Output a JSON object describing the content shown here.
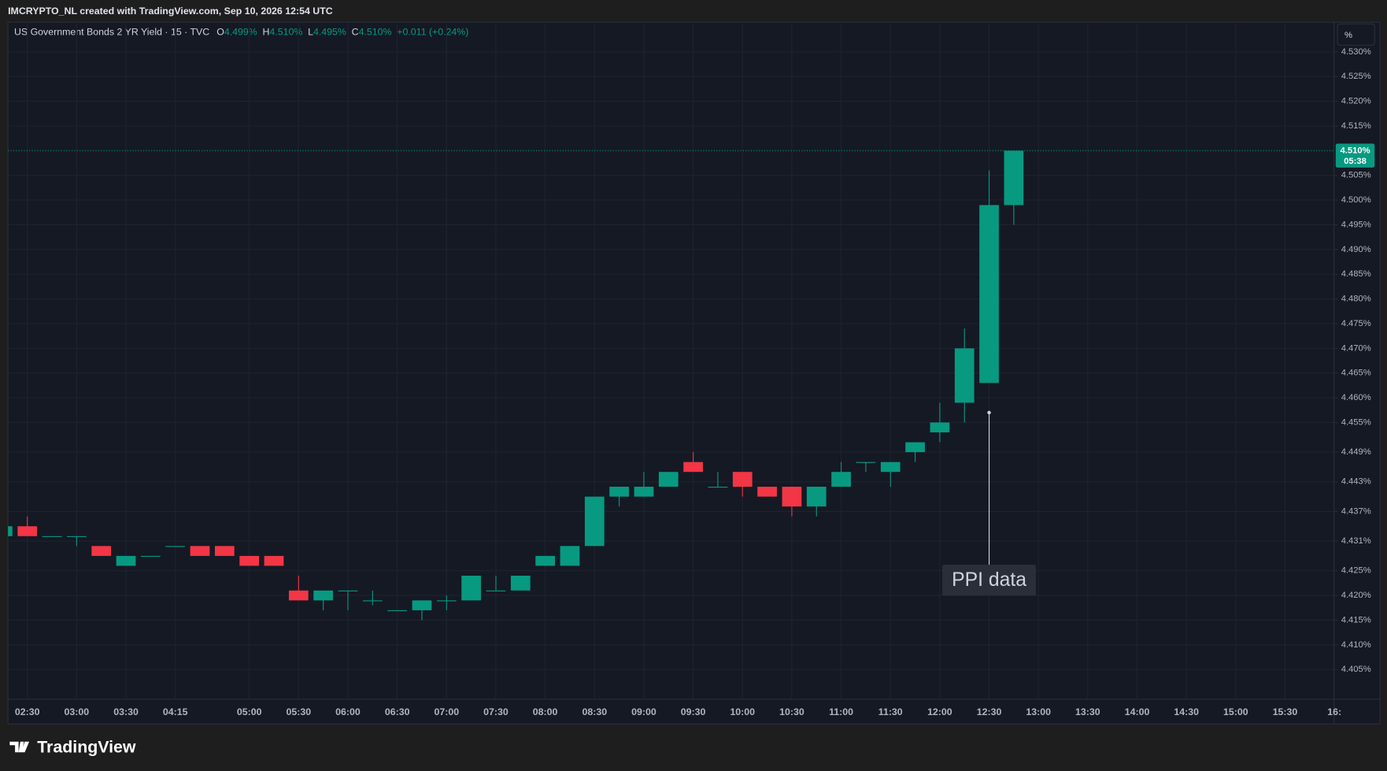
{
  "header": {
    "credit": "IMCRYPTO_NL created with TradingView.com, Sep 10, 2026 12:54 UTC"
  },
  "footer": {
    "brand": "TradingView"
  },
  "chart_data": {
    "type": "candlestick",
    "symbol": "US Government Bonds 2 YR Yield · 15 · TVC",
    "legend": [
      {
        "key": "O",
        "label": "4.499%"
      },
      {
        "key": "H",
        "label": "4.510%"
      },
      {
        "key": "L",
        "label": "4.495%"
      },
      {
        "key": "C",
        "label": "4.510%"
      }
    ],
    "change": "+0.011 (+0.24%)",
    "unit": "%",
    "up_color": "#089981",
    "down_color": "#f23645",
    "grid": true,
    "categories": [
      null,
      "02:30",
      null,
      "03:00",
      null,
      "03:30",
      null,
      "04:15",
      null,
      null,
      "05:00",
      null,
      "05:30",
      null,
      "06:00",
      null,
      "06:30",
      null,
      "07:00",
      null,
      "07:30",
      null,
      "08:00",
      null,
      "08:30",
      null,
      "09:00",
      null,
      "09:30",
      null,
      "10:00",
      null,
      "10:30",
      null,
      "11:00",
      null,
      "11:30",
      null,
      "12:00",
      null,
      "12:30",
      null,
      "13:00",
      null,
      "13:30",
      null,
      "14:00",
      null,
      "14:30",
      null,
      "15:00",
      null,
      "15:30",
      null,
      "16:"
    ],
    "open": [
      4.432,
      4.434,
      4.432,
      4.432,
      4.43,
      4.426,
      4.428,
      4.43,
      4.43,
      4.43,
      4.428,
      4.428,
      4.421,
      4.419,
      4.421,
      4.419,
      4.417,
      4.417,
      4.419,
      4.419,
      4.421,
      4.421,
      4.426,
      4.426,
      4.43,
      4.44,
      4.44,
      4.442,
      4.447,
      4.442,
      4.445,
      4.442,
      4.442,
      4.438,
      4.442,
      4.447,
      4.445,
      4.449,
      4.453,
      4.459,
      4.463,
      4.499,
      null,
      null,
      null,
      null,
      null,
      null,
      null,
      null,
      null,
      null,
      null,
      null,
      null
    ],
    "high": [
      4.434,
      4.436,
      4.432,
      4.432,
      4.43,
      4.428,
      4.428,
      4.43,
      4.43,
      4.43,
      4.428,
      4.428,
      4.424,
      4.421,
      4.421,
      4.421,
      4.417,
      4.419,
      4.42,
      4.424,
      4.424,
      4.424,
      4.428,
      4.43,
      4.44,
      4.442,
      4.445,
      4.445,
      4.449,
      4.445,
      4.445,
      4.442,
      4.442,
      4.442,
      4.447,
      4.447,
      4.447,
      4.451,
      4.459,
      4.474,
      4.506,
      4.51,
      null,
      null,
      null,
      null,
      null,
      null,
      null,
      null,
      null,
      null,
      null,
      null,
      null
    ],
    "low": [
      4.432,
      4.432,
      4.432,
      4.43,
      4.428,
      4.426,
      4.428,
      4.43,
      4.428,
      4.428,
      4.426,
      4.426,
      4.419,
      4.417,
      4.417,
      4.418,
      4.417,
      4.415,
      4.417,
      4.419,
      4.421,
      4.421,
      4.426,
      4.426,
      4.43,
      4.438,
      4.44,
      4.442,
      4.445,
      4.442,
      4.44,
      4.44,
      4.436,
      4.436,
      4.442,
      4.445,
      4.442,
      4.447,
      4.451,
      4.455,
      4.463,
      4.495,
      null,
      null,
      null,
      null,
      null,
      null,
      null,
      null,
      null,
      null,
      null,
      null,
      null
    ],
    "close": [
      4.434,
      4.432,
      4.432,
      4.432,
      4.428,
      4.428,
      4.428,
      4.43,
      4.428,
      4.428,
      4.426,
      4.426,
      4.419,
      4.421,
      4.421,
      4.419,
      4.417,
      4.419,
      4.419,
      4.424,
      4.421,
      4.424,
      4.428,
      4.43,
      4.44,
      4.442,
      4.442,
      4.445,
      4.445,
      4.442,
      4.442,
      4.44,
      4.438,
      4.442,
      4.445,
      4.447,
      4.447,
      4.451,
      4.455,
      4.47,
      4.499,
      4.51,
      null,
      null,
      null,
      null,
      null,
      null,
      null,
      null,
      null,
      null,
      null,
      null,
      null
    ],
    "ylim": [
      4.399,
      4.536
    ],
    "yticks": [
      {
        "value": 4.53,
        "label": "4.530%"
      },
      {
        "value": 4.525,
        "label": "4.525%"
      },
      {
        "value": 4.52,
        "label": "4.520%"
      },
      {
        "value": 4.515,
        "label": "4.515%"
      },
      {
        "value": 4.505,
        "label": "4.505%"
      },
      {
        "value": 4.5,
        "label": "4.500%"
      },
      {
        "value": 4.495,
        "label": "4.495%"
      },
      {
        "value": 4.49,
        "label": "4.490%"
      },
      {
        "value": 4.485,
        "label": "4.485%"
      },
      {
        "value": 4.48,
        "label": "4.480%"
      },
      {
        "value": 4.475,
        "label": "4.475%"
      },
      {
        "value": 4.47,
        "label": "4.470%"
      },
      {
        "value": 4.465,
        "label": "4.465%"
      },
      {
        "value": 4.46,
        "label": "4.460%"
      },
      {
        "value": 4.455,
        "label": "4.455%"
      },
      {
        "value": 4.449,
        "label": "4.449%"
      },
      {
        "value": 4.443,
        "label": "4.443%"
      },
      {
        "value": 4.437,
        "label": "4.437%"
      },
      {
        "value": 4.431,
        "label": "4.431%"
      },
      {
        "value": 4.425,
        "label": "4.425%"
      },
      {
        "value": 4.42,
        "label": "4.420%"
      },
      {
        "value": 4.415,
        "label": "4.415%"
      },
      {
        "value": 4.41,
        "label": "4.410%"
      },
      {
        "value": 4.405,
        "label": "4.405%"
      }
    ],
    "last_price": {
      "value": 4.51,
      "label": "4.510%"
    },
    "countdown": "05:38",
    "annotation": {
      "text": "PPI data",
      "at": "12:30",
      "value": 4.457
    }
  }
}
